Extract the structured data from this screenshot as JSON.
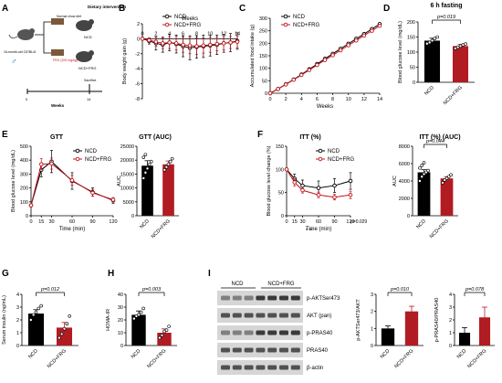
{
  "colors": {
    "ncd": "#000000",
    "frg": "#c0141c",
    "frg_fill": "#b01c22",
    "fill_ncd": "#000000",
    "blot_bg": "#d6d6d6",
    "band": "#3a3a3a"
  },
  "panels": {
    "A": {
      "letter": "A",
      "mouse_label": "15-month-old C57BL/6",
      "diet_title": "Dietary intervention",
      "chow_label": "Normal chow diet",
      "frg_label": "FRG (200 mg/kg)",
      "group_ncd": "NCD",
      "group_frg": "NCD+FRG",
      "sacrifice": "Sacrifice",
      "axis_label": "Weeks",
      "tick_start": "0",
      "tick_end": "14",
      "sex_icon": "male-symbol-icon"
    },
    "E_sub": "GTT",
    "E_auc_sub": "GTT (AUC)",
    "F_sub": "ITT (%)",
    "F_auc_sub": "ITT (%) (AUC)",
    "F_pvalue": "p=0.029",
    "F_stars": "* **",
    "I": {
      "letter": "I",
      "lane_groups": [
        "NCD",
        "NCD+FRG"
      ],
      "blot_labels": [
        "p-AKTSer473",
        "AKT (pan)",
        "p-PRAS40",
        "PRAS40",
        "β-actin"
      ]
    }
  },
  "chart_data": [
    {
      "id": "B",
      "type": "line",
      "title": "",
      "xlabel": "Weeks",
      "ylabel": "Body weight gain (g)",
      "x": [
        0,
        1,
        2,
        3,
        4,
        5,
        6,
        7,
        8,
        9,
        10,
        11,
        12,
        13,
        14
      ],
      "xticks": [
        "0",
        "2",
        "4",
        "6",
        "8",
        "10",
        "12",
        "14"
      ],
      "yticks": [
        "2",
        "0",
        "-2",
        "-4",
        "-6",
        "-8"
      ],
      "ylim": [
        -8,
        2
      ],
      "legend": [
        "NCD",
        "NCD+FRG"
      ],
      "series": [
        {
          "name": "NCD",
          "values": [
            0,
            -0.3,
            -0.6,
            -0.8,
            -0.5,
            -0.7,
            -1.0,
            -1.2,
            -1.1,
            -1.0,
            -0.9,
            -0.8,
            -0.6,
            -0.5,
            -0.3
          ],
          "err": [
            0,
            0.4,
            0.9,
            1.0,
            1.1,
            1.2,
            1.4,
            1.6,
            1.5,
            1.5,
            1.4,
            1.3,
            1.2,
            1.2,
            1.1
          ]
        },
        {
          "name": "NCD+FRG",
          "values": [
            0,
            -0.2,
            -0.4,
            -0.6,
            -0.5,
            -0.6,
            -0.8,
            -0.9,
            -1.0,
            -0.9,
            -0.8,
            -0.7,
            -0.6,
            -0.5,
            -0.4
          ],
          "err": [
            0,
            0.3,
            0.6,
            0.7,
            0.8,
            0.9,
            1.0,
            1.1,
            1.1,
            1.0,
            1.0,
            0.9,
            0.9,
            0.8,
            0.8
          ]
        }
      ]
    },
    {
      "id": "C",
      "type": "line",
      "title": "",
      "xlabel": "Weeks",
      "ylabel": "Accumulated food intake (g)",
      "x": [
        0,
        1,
        2,
        3,
        4,
        5,
        6,
        7,
        8,
        9,
        10,
        11,
        12,
        13,
        14
      ],
      "xticks": [
        "0",
        "2",
        "4",
        "6",
        "8",
        "10",
        "12",
        "14"
      ],
      "yticks": [
        "0",
        "50",
        "100",
        "150",
        "200",
        "250",
        "300"
      ],
      "ylim": [
        0,
        300
      ],
      "legend": [
        "NCD",
        "NCD+FRG"
      ],
      "series": [
        {
          "name": "NCD",
          "values": [
            0,
            17,
            36,
            55,
            75,
            96,
            117,
            138,
            158,
            178,
            198,
            218,
            237,
            257,
            277
          ]
        },
        {
          "name": "NCD+FRG",
          "values": [
            0,
            17,
            35,
            54,
            73,
            93,
            113,
            133,
            152,
            172,
            192,
            211,
            231,
            250,
            270
          ]
        }
      ]
    },
    {
      "id": "D",
      "type": "bar",
      "title": "6 h fasting",
      "ylabel": "Blood glucose level (mg/dL)",
      "categories": [
        "NCD",
        "NCD+FRG"
      ],
      "values": [
        138,
        120
      ],
      "err": [
        8,
        6
      ],
      "points": [
        [
          128,
          132,
          138,
          145,
          150
        ],
        [
          112,
          116,
          120,
          124,
          127
        ]
      ],
      "yticks": [
        "0",
        "50",
        "100",
        "150",
        "200"
      ],
      "ylim": [
        0,
        200
      ],
      "annotation": "p=0.019"
    },
    {
      "id": "E",
      "type": "line",
      "title": "",
      "xlabel": "Time (min)",
      "ylabel": "Blood glucose level (mg/dL)",
      "x": [
        0,
        15,
        30,
        60,
        90,
        120
      ],
      "xticks": [
        "0",
        "15",
        "30",
        "60",
        "90",
        "120"
      ],
      "yticks": [
        "0",
        "100",
        "200",
        "300",
        "400",
        "500"
      ],
      "ylim": [
        0,
        500
      ],
      "legend": [
        "NCD",
        "NCD+FRG"
      ],
      "series": [
        {
          "name": "NCD",
          "values": [
            75,
            330,
            390,
            250,
            170,
            110
          ],
          "err": [
            10,
            50,
            80,
            60,
            30,
            20
          ]
        },
        {
          "name": "NCD+FRG",
          "values": [
            75,
            370,
            375,
            255,
            165,
            115
          ],
          "err": [
            10,
            40,
            40,
            35,
            25,
            15
          ]
        }
      ]
    },
    {
      "id": "E_AUC",
      "type": "bar",
      "title": "",
      "ylabel": "AUC",
      "categories": [
        "NCD",
        "NCD+FRG"
      ],
      "values": [
        18000,
        18500
      ],
      "err": [
        1800,
        1200
      ],
      "points": [
        [
          13500,
          15500,
          17000,
          18500,
          19500,
          21000,
          22000
        ],
        [
          16500,
          17500,
          18500,
          19500,
          20500
        ]
      ],
      "yticks": [
        "0",
        "5000",
        "10000",
        "15000",
        "20000",
        "25000"
      ],
      "ylim": [
        0,
        25000
      ]
    },
    {
      "id": "F",
      "type": "line",
      "title": "",
      "xlabel": "Time (min)",
      "ylabel": "Blood glucose level change (%)",
      "x": [
        0,
        15,
        30,
        60,
        90,
        120
      ],
      "xticks": [
        "0",
        "15",
        "30",
        "60",
        "90",
        "120"
      ],
      "yticks": [
        "0",
        "50",
        "100",
        "150"
      ],
      "ylim": [
        0,
        150
      ],
      "legend": [
        "NCD",
        "NCD+FRG"
      ],
      "series": [
        {
          "name": "NCD",
          "values": [
            100,
            80,
            65,
            60,
            65,
            75
          ],
          "err": [
            0,
            10,
            12,
            15,
            15,
            18
          ]
        },
        {
          "name": "NCD+FRG",
          "values": [
            100,
            72,
            55,
            45,
            40,
            45
          ],
          "err": [
            0,
            8,
            6,
            6,
            6,
            8
          ]
        }
      ]
    },
    {
      "id": "F_AUC",
      "type": "bar",
      "title": "",
      "ylabel": "AUC",
      "categories": [
        "NCD",
        "NCD+FRG"
      ],
      "values": [
        5000,
        4300
      ],
      "err": [
        300,
        200
      ],
      "points": [
        [
          4000,
          4500,
          4800,
          5000,
          5200,
          5500,
          5800,
          6100
        ],
        [
          3800,
          4100,
          4300,
          4500,
          4700
        ]
      ],
      "yticks": [
        "0",
        "2000",
        "4000",
        "6000",
        "8000"
      ],
      "ylim": [
        0,
        8000
      ],
      "annotation": "p=0.044"
    },
    {
      "id": "G",
      "type": "bar",
      "title": "",
      "ylabel": "Serum insulin (ng/mL)",
      "categories": [
        "NCD",
        "NCD+FRG"
      ],
      "values": [
        2.5,
        1.4
      ],
      "err": [
        0.3,
        0.4
      ],
      "points": [
        [
          2.0,
          2.4,
          2.6,
          2.9,
          3.1
        ],
        [
          0.6,
          0.9,
          1.3,
          1.7,
          2.3
        ]
      ],
      "yticks": [
        "0",
        "1",
        "2",
        "3",
        "4"
      ],
      "ylim": [
        0,
        4
      ],
      "annotation": "p=0.012"
    },
    {
      "id": "H",
      "type": "bar",
      "title": "",
      "ylabel": "HOMA-IR",
      "categories": [
        "NCD",
        "NCD+FRG"
      ],
      "values": [
        24,
        10
      ],
      "err": [
        3,
        3
      ],
      "points": [
        [
          21,
          23,
          24,
          26,
          29
        ],
        [
          6,
          8,
          11,
          12,
          15
        ]
      ],
      "yticks": [
        "0",
        "10",
        "20",
        "30",
        "40"
      ],
      "ylim": [
        0,
        40
      ],
      "annotation": "p=0.003"
    },
    {
      "id": "I1",
      "type": "bar",
      "title": "",
      "ylabel": "p-AKTSer473/AKT",
      "categories": [
        "NCD",
        "NCD+FRG"
      ],
      "values": [
        1.0,
        2.0
      ],
      "err": [
        0.15,
        0.3
      ],
      "yticks": [
        "0",
        "1",
        "2",
        "3"
      ],
      "ylim": [
        0,
        3
      ],
      "annotation": "p=0.010"
    },
    {
      "id": "I2",
      "type": "bar",
      "title": "",
      "ylabel": "p-PRAS40/PRAS40",
      "categories": [
        "NCD",
        "NCD+FRG"
      ],
      "values": [
        1.0,
        2.2
      ],
      "err": [
        0.4,
        0.8
      ],
      "yticks": [
        "0",
        "1",
        "2",
        "3",
        "4"
      ],
      "ylim": [
        0,
        4
      ],
      "annotation": "p=0.078"
    }
  ]
}
